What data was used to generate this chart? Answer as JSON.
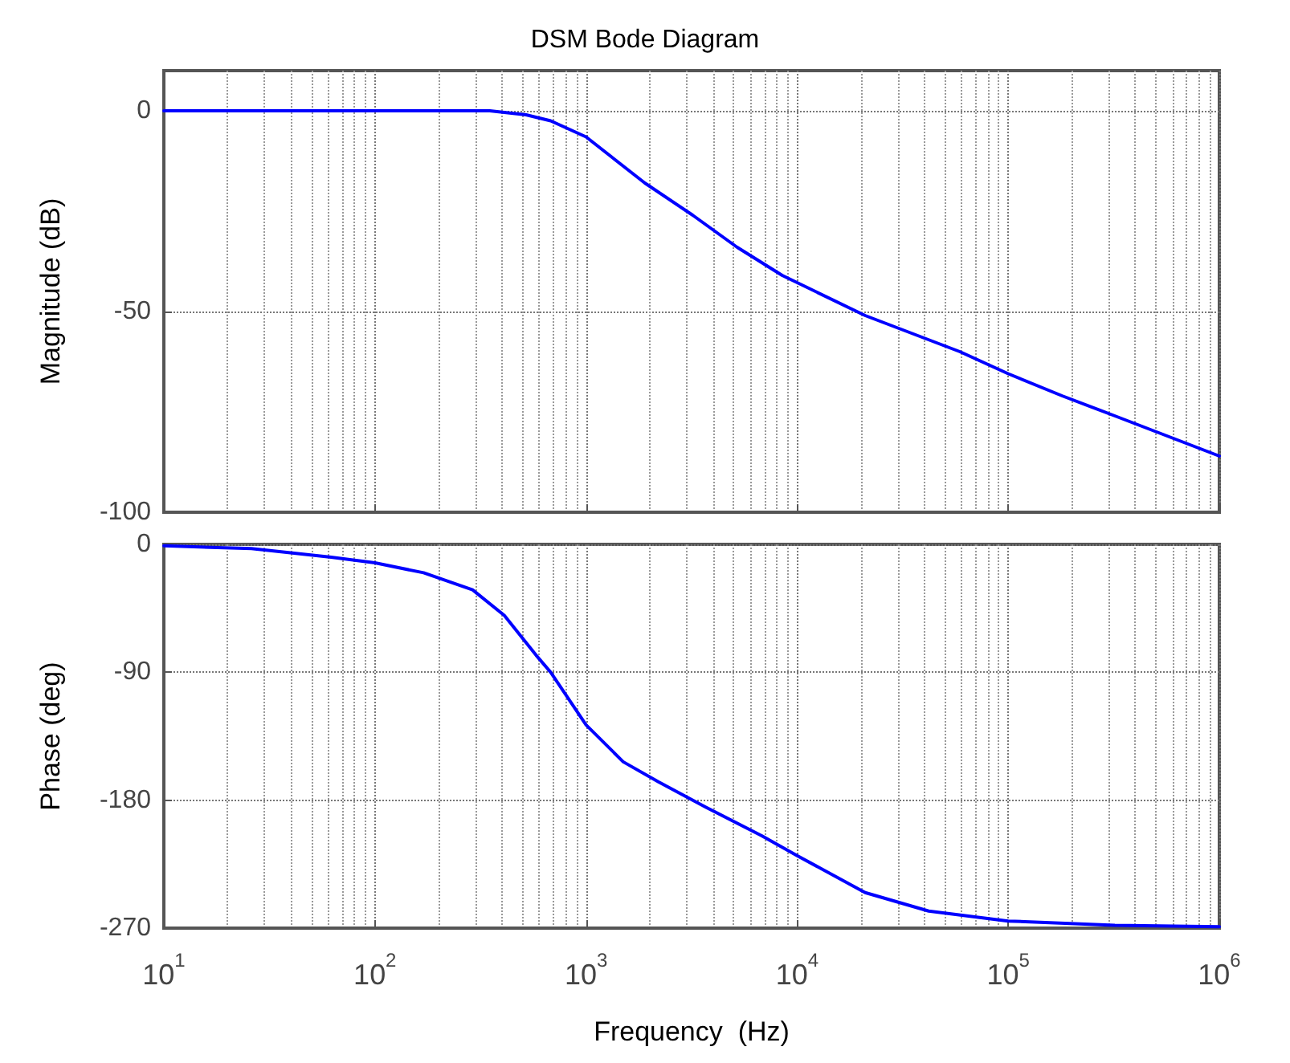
{
  "chart_data": [
    {
      "type": "line",
      "title": "DSM Bode Diagram",
      "ylabel": "Magnitude (dB)",
      "log": "x",
      "grid": true,
      "tick_labels": "y",
      "x": [
        10,
        350,
        520,
        680,
        1000,
        1900,
        3200,
        5200,
        8500,
        21000,
        59000,
        100000,
        180000,
        320000,
        1000000
      ],
      "series": [
        {
          "color": "#0000ff",
          "values": [
            0,
            0,
            -1,
            -2.5,
            -6.5,
            -18,
            -26,
            -34,
            -41,
            -51,
            -60,
            -65.5,
            -71,
            -76,
            -86
          ]
        }
      ],
      "xlim": [
        10,
        1000000
      ],
      "ylim": [
        -100,
        10
      ],
      "xticks": [
        {
          "value": 10,
          "label": null
        },
        {
          "value": 100,
          "label": null
        },
        {
          "value": 1000,
          "label": null
        },
        {
          "value": 10000,
          "label": null
        },
        {
          "value": 100000,
          "label": null
        },
        {
          "value": 1000000,
          "label": null
        }
      ],
      "yticks": [
        -100,
        -50,
        0
      ]
    },
    {
      "type": "line",
      "xlabel": "Frequency  (Hz)",
      "ylabel": "Phase (deg)",
      "log": "x",
      "grid": true,
      "x": [
        10,
        26,
        62,
        100,
        170,
        290,
        410,
        580,
        680,
        1000,
        1500,
        2200,
        3700,
        6800,
        10000,
        21000,
        42000,
        100000,
        320000,
        1000000
      ],
      "series": [
        {
          "color": "#0000ff",
          "values": [
            -1,
            -3,
            -9,
            -13,
            -20,
            -32,
            -50,
            -78,
            -90,
            -127,
            -153,
            -167,
            -185,
            -205,
            -219,
            -245,
            -258,
            -265,
            -268,
            -269
          ]
        }
      ],
      "xlim": [
        10,
        1000000
      ],
      "ylim": [
        -270,
        0
      ],
      "xticks": [
        {
          "value": 10,
          "label": "10$^{1}$"
        },
        {
          "value": 100,
          "label": "10$^{2}$"
        },
        {
          "value": 1000,
          "label": "10$^{3}$"
        },
        {
          "value": 10000,
          "label": "10$^{4}$"
        },
        {
          "value": 100000,
          "label": "10$^{5}$"
        },
        {
          "value": 1000000,
          "label": "10$^{6}$"
        }
      ],
      "yticks": [
        -270,
        -180,
        -90,
        0
      ]
    }
  ]
}
